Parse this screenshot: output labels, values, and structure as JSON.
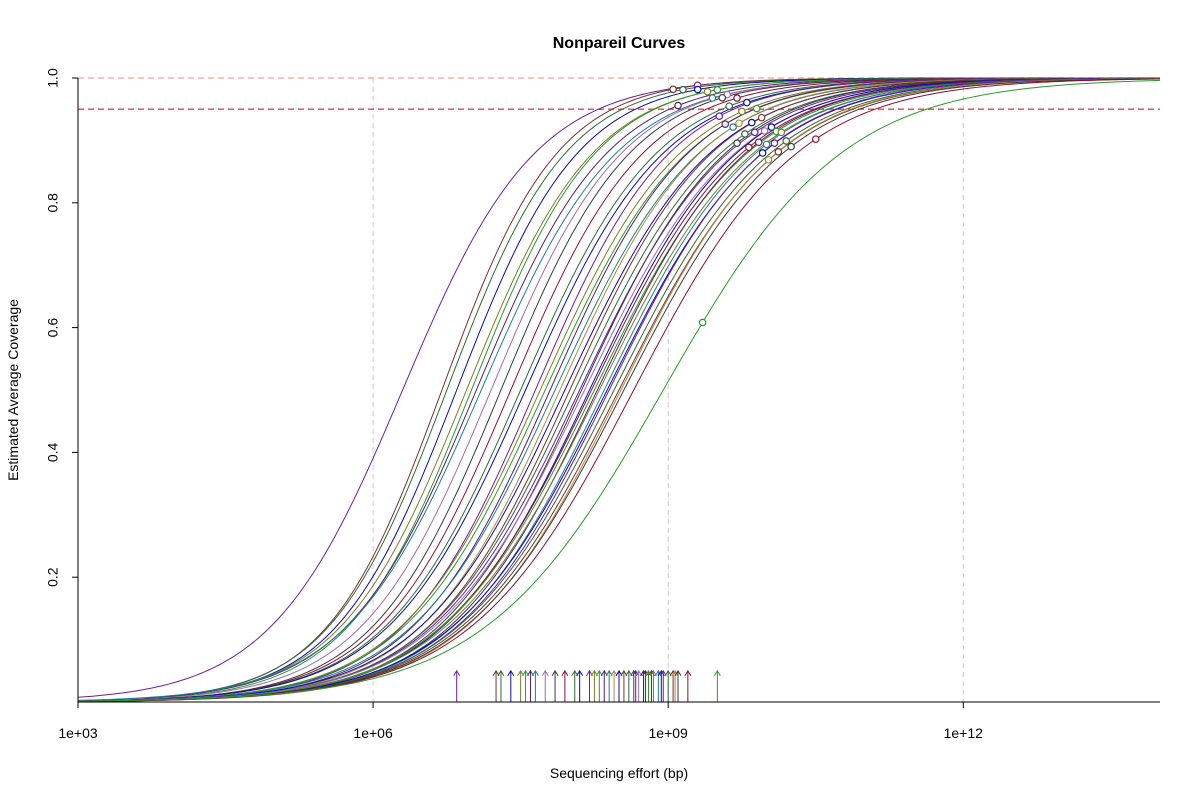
{
  "chart_data": {
    "type": "line",
    "title": "Nonpareil Curves",
    "xlabel": "Sequencing effort (bp)",
    "ylabel": "Estimated Average Coverage",
    "x_scale": "log10",
    "xlim": [
      1000,
      100000000000000
    ],
    "ylim": [
      0,
      1
    ],
    "x_ticks": [
      {
        "value": 1000,
        "label": "1e+03"
      },
      {
        "value": 1000000,
        "label": "1e+06"
      },
      {
        "value": 1000000000,
        "label": "1e+09"
      },
      {
        "value": 1000000000000,
        "label": "1e+12"
      }
    ],
    "y_ticks": [
      {
        "value": 0.2,
        "label": "0.2"
      },
      {
        "value": 0.4,
        "label": "0.4"
      },
      {
        "value": 0.6,
        "label": "0.6"
      },
      {
        "value": 0.8,
        "label": "0.8"
      },
      {
        "value": 1.0,
        "label": "1.0"
      }
    ],
    "reference_lines": [
      {
        "y": 1.0,
        "color": "#f4b3a8",
        "style": "dashed"
      },
      {
        "y": 0.95,
        "color": "#e8404a",
        "style": "dashed"
      }
    ],
    "vertical_grid_at": [
      1000000,
      1000000000,
      1000000000000
    ],
    "grid_color": "#cccccc",
    "series_shape": "sigmoid coverage curve vs. log10 sequencing effort; each series ends at its actual dataset size (circle) and has an arrow marking the sequencing effort for half coverage",
    "series": [
      {
        "color": "#6a1ea0",
        "mid": 6.3,
        "steep": 1.48,
        "x_sample": 9.3
      },
      {
        "color": "#7b2f30",
        "mid": 6.7,
        "steep": 1.7,
        "x_sample": 9.05
      },
      {
        "color": "#2e6a38",
        "mid": 6.75,
        "steep": 1.65,
        "x_sample": 9.15
      },
      {
        "color": "#0b0ba8",
        "mid": 6.85,
        "steep": 1.62,
        "x_sample": 9.3
      },
      {
        "color": "#7b7b2a",
        "mid": 6.95,
        "steep": 1.55,
        "x_sample": 9.4
      },
      {
        "color": "#2a9a2a",
        "mid": 7.0,
        "steep": 1.58,
        "x_sample": 9.5
      },
      {
        "color": "#5a1e6a",
        "mid": 7.05,
        "steep": 1.5,
        "x_sample": 9.1
      },
      {
        "color": "#1f7f8f",
        "mid": 7.1,
        "steep": 1.45,
        "x_sample": 9.45
      },
      {
        "color": "#a06ab0",
        "mid": 7.2,
        "steep": 1.5,
        "x_sample": 9.6
      },
      {
        "color": "#3a3a3a",
        "mid": 7.3,
        "steep": 1.52,
        "x_sample": 9.55
      },
      {
        "color": "#8a1030",
        "mid": 7.4,
        "steep": 1.48,
        "x_sample": 9.7
      },
      {
        "color": "#2e6a38",
        "mid": 7.5,
        "steep": 1.44,
        "x_sample": 9.62
      },
      {
        "color": "#0b0ba8",
        "mid": 7.55,
        "steep": 1.42,
        "x_sample": 9.8
      },
      {
        "color": "#6a1ea0",
        "mid": 7.65,
        "steep": 1.46,
        "x_sample": 9.52
      },
      {
        "color": "#7b7b2a",
        "mid": 7.7,
        "steep": 1.4,
        "x_sample": 9.75
      },
      {
        "color": "#2a9a2a",
        "mid": 7.75,
        "steep": 1.38,
        "x_sample": 9.9
      },
      {
        "color": "#5a1e6a",
        "mid": 7.8,
        "steep": 1.42,
        "x_sample": 9.58
      },
      {
        "color": "#1f7f8f",
        "mid": 7.85,
        "steep": 1.36,
        "x_sample": 9.66
      },
      {
        "color": "#b08a3a",
        "mid": 7.9,
        "steep": 1.4,
        "x_sample": 9.72
      },
      {
        "color": "#0b0ba8",
        "mid": 7.95,
        "steep": 1.35,
        "x_sample": 9.85
      },
      {
        "color": "#7b2f30",
        "mid": 8.0,
        "steep": 1.38,
        "x_sample": 9.95
      },
      {
        "color": "#2e6a38",
        "mid": 8.05,
        "steep": 1.34,
        "x_sample": 9.78
      },
      {
        "color": "#6a1ea0",
        "mid": 8.1,
        "steep": 1.32,
        "x_sample": 9.88
      },
      {
        "color": "#3a3a3a",
        "mid": 8.12,
        "steep": 1.36,
        "x_sample": 9.7
      },
      {
        "color": "#a06ab0",
        "mid": 8.15,
        "steep": 1.3,
        "x_sample": 9.98
      },
      {
        "color": "#0b0ba8",
        "mid": 8.2,
        "steep": 1.33,
        "x_sample": 10.05
      },
      {
        "color": "#8a1030",
        "mid": 8.22,
        "steep": 1.3,
        "x_sample": 9.82
      },
      {
        "color": "#2a9a2a",
        "mid": 8.25,
        "steep": 1.28,
        "x_sample": 10.1
      },
      {
        "color": "#5a1e6a",
        "mid": 8.28,
        "steep": 1.32,
        "x_sample": 9.92
      },
      {
        "color": "#7b7b2a",
        "mid": 8.3,
        "steep": 1.27,
        "x_sample": 10.15
      },
      {
        "color": "#1f7f8f",
        "mid": 8.35,
        "steep": 1.29,
        "x_sample": 10.0
      },
      {
        "color": "#0b0ba8",
        "mid": 8.38,
        "steep": 1.26,
        "x_sample": 9.96
      },
      {
        "color": "#6a1ea0",
        "mid": 8.4,
        "steep": 1.28,
        "x_sample": 10.08
      },
      {
        "color": "#2e6a38",
        "mid": 8.45,
        "steep": 1.25,
        "x_sample": 10.2
      },
      {
        "color": "#7b2f30",
        "mid": 8.5,
        "steep": 1.24,
        "x_sample": 10.12
      },
      {
        "color": "#b08a3a",
        "mid": 8.52,
        "steep": 1.26,
        "x_sample": 10.02
      },
      {
        "color": "#3a3a3a",
        "mid": 8.55,
        "steep": 1.23,
        "x_sample": 10.25
      },
      {
        "color": "#8a1030",
        "mid": 8.65,
        "steep": 1.2,
        "x_sample": 10.5
      },
      {
        "color": "#2a9a2a",
        "mid": 8.95,
        "steep": 1.1,
        "x_sample": 9.35
      }
    ]
  }
}
